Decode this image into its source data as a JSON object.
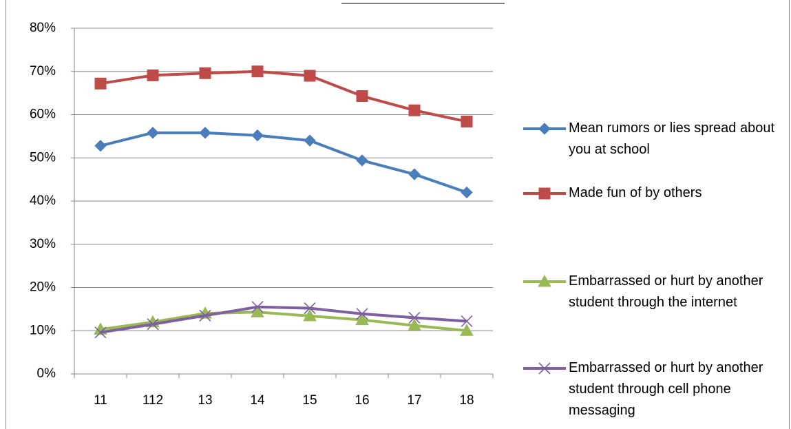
{
  "chart_data": {
    "type": "line",
    "categories": [
      "11",
      "112",
      "13",
      "14",
      "15",
      "16",
      "17",
      "18"
    ],
    "series": [
      {
        "name": "Mean rumors or lies spread about you at school",
        "color": "#4a7ebb",
        "marker": "diamond",
        "values": [
          52.8,
          55.8,
          55.8,
          55.2,
          54,
          49.4,
          46.2,
          42
        ]
      },
      {
        "name": "Made fun of by others",
        "color": "#be4b48",
        "marker": "square",
        "values": [
          67.2,
          69.1,
          69.6,
          70,
          69,
          64.3,
          61,
          58.4
        ]
      },
      {
        "name": "Embarrassed or hurt by another student through the internet",
        "color": "#98b954",
        "marker": "triangle",
        "values": [
          10.3,
          12,
          14,
          14.3,
          13.4,
          12.5,
          11.2,
          10
        ]
      },
      {
        "name": "Embarrassed or hurt by another student through cell phone messaging",
        "color": "#7d60a0",
        "marker": "x",
        "values": [
          9.6,
          11.5,
          13.5,
          15.5,
          15.2,
          13.9,
          13,
          12.2
        ]
      }
    ],
    "ylim": [
      0,
      80
    ],
    "yticks": [
      {
        "value": 0,
        "label": "0%"
      },
      {
        "value": 10,
        "label": "10%"
      },
      {
        "value": 20,
        "label": "20%"
      },
      {
        "value": 30,
        "label": "30%"
      },
      {
        "value": 40,
        "label": "40%"
      },
      {
        "value": 50,
        "label": "50%"
      },
      {
        "value": 60,
        "label": "60%"
      },
      {
        "value": 70,
        "label": "70%"
      },
      {
        "value": 80,
        "label": "80%"
      }
    ],
    "grid": true,
    "legend": "right"
  }
}
